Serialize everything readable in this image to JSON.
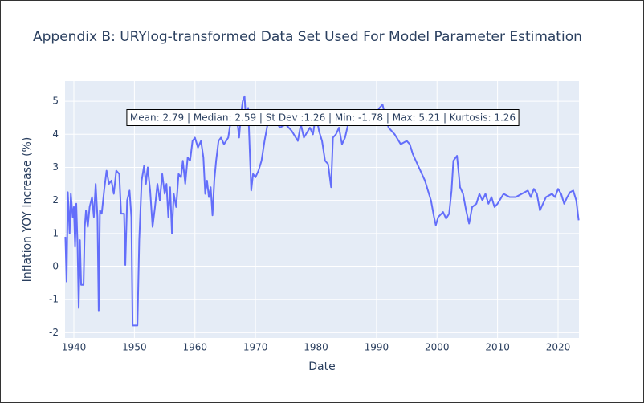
{
  "chart_data": {
    "type": "line",
    "title": "Appendix B: URYlog-transformed Data Set Used For Model Parameter Estimation",
    "x_label": "Date",
    "y_label": "Inflation YOY Increase (%)",
    "annotation": "Mean: 2.79 | Median: 2.59 | St Dev :1.26 | Min: -1.78 | Max: 5.21 | Kurtosis: 1.26",
    "xlim": [
      1938.54,
      2023.45
    ],
    "xticks": [
      1940,
      1950,
      1960,
      1970,
      1980,
      1990,
      2000,
      2010,
      2020
    ],
    "ylim": [
      -2.16,
      5.61
    ],
    "yticks": [
      -2,
      -1,
      0,
      1,
      2,
      3,
      4,
      5
    ],
    "grid": true,
    "series": [
      {
        "color": "#636efa",
        "x": [
          1938.6,
          1938.8,
          1939.0,
          1939.3,
          1939.5,
          1939.8,
          1940.0,
          1940.2,
          1940.4,
          1940.6,
          1940.8,
          1941.0,
          1941.2,
          1941.6,
          1941.8,
          1942.0,
          1942.3,
          1942.6,
          1943.0,
          1943.3,
          1943.6,
          1943.9,
          1944.1,
          1944.3,
          1944.6,
          1945.0,
          1945.4,
          1945.8,
          1946.2,
          1946.6,
          1947.0,
          1947.5,
          1947.8,
          1948.3,
          1948.5,
          1948.8,
          1949.2,
          1949.5,
          1949.7,
          1950.5,
          1950.8,
          1951.2,
          1951.6,
          1951.9,
          1952.2,
          1952.6,
          1953.0,
          1953.4,
          1953.8,
          1954.2,
          1954.6,
          1955.0,
          1955.3,
          1955.6,
          1955.9,
          1956.2,
          1956.5,
          1956.9,
          1957.3,
          1957.7,
          1958.0,
          1958.4,
          1958.8,
          1959.2,
          1959.6,
          1960.0,
          1960.5,
          1961.0,
          1961.4,
          1961.7,
          1962.0,
          1962.3,
          1962.6,
          1962.9,
          1963.2,
          1963.5,
          1963.9,
          1964.3,
          1964.8,
          1965.5,
          1966.0,
          1966.5,
          1967.0,
          1967.3,
          1967.6,
          1967.9,
          1968.2,
          1968.4,
          1968.8,
          1969.3,
          1969.6,
          1970.0,
          1970.5,
          1971.0,
          1971.5,
          1972.0,
          1973.0,
          1974.0,
          1975.0,
          1976.0,
          1977.0,
          1977.5,
          1978.0,
          1979.0,
          1979.5,
          1980.0,
          1980.5,
          1981.0,
          1981.5,
          1982.0,
          1982.5,
          1982.8,
          1983.3,
          1983.8,
          1984.3,
          1984.8,
          1985.3,
          1986.0,
          1987.0,
          1988.0,
          1989.0,
          1989.8,
          1990.5,
          1991.0,
          1991.5,
          1992.0,
          1993.0,
          1994.0,
          1995.0,
          1995.5,
          1996.0,
          1997.0,
          1998.0,
          1998.5,
          1999.0,
          1999.5,
          1999.8,
          2000.2,
          2001.0,
          2001.5,
          2002.0,
          2002.4,
          2002.7,
          2003.3,
          2003.8,
          2004.3,
          2004.8,
          2005.3,
          2005.8,
          2006.5,
          2007.0,
          2007.5,
          2008.0,
          2008.5,
          2009.0,
          2009.5,
          2010.0,
          2011.0,
          2012.0,
          2013.0,
          2014.0,
          2015.0,
          2015.5,
          2016.0,
          2016.5,
          2017.0,
          2017.5,
          2018.0,
          2019.0,
          2019.5,
          2020.0,
          2020.5,
          2021.0,
          2021.5,
          2022.0,
          2022.5,
          2023.0,
          2023.4
        ],
        "values": [
          0.9,
          -0.45,
          2.25,
          1.0,
          2.2,
          1.5,
          1.8,
          0.6,
          1.9,
          0.7,
          -1.25,
          0.8,
          -0.55,
          -0.55,
          1.2,
          1.7,
          1.2,
          1.8,
          2.1,
          1.5,
          2.5,
          1.5,
          -1.35,
          1.7,
          1.6,
          2.3,
          2.9,
          2.5,
          2.6,
          2.2,
          2.9,
          2.8,
          1.6,
          1.6,
          0.05,
          2.0,
          2.3,
          1.5,
          -1.78,
          -1.78,
          0.8,
          2.6,
          3.05,
          2.5,
          3.0,
          2.3,
          1.2,
          1.8,
          2.5,
          2.0,
          2.8,
          2.2,
          2.5,
          1.5,
          2.4,
          1.0,
          2.2,
          1.8,
          2.8,
          2.7,
          3.2,
          2.5,
          3.3,
          3.2,
          3.8,
          3.9,
          3.6,
          3.8,
          3.3,
          2.2,
          2.6,
          2.1,
          2.4,
          1.55,
          2.6,
          3.2,
          3.8,
          3.9,
          3.7,
          3.9,
          4.5,
          4.6,
          4.4,
          3.9,
          4.6,
          5.0,
          5.15,
          4.5,
          4.8,
          2.3,
          2.8,
          2.7,
          2.9,
          3.2,
          3.8,
          4.3,
          4.6,
          4.2,
          4.3,
          4.1,
          3.8,
          4.3,
          3.9,
          4.2,
          4.0,
          4.6,
          4.1,
          3.8,
          3.2,
          3.1,
          2.4,
          3.9,
          4.0,
          4.2,
          3.7,
          3.9,
          4.3,
          4.5,
          4.4,
          4.3,
          4.4,
          4.6,
          4.8,
          4.9,
          4.5,
          4.2,
          4.0,
          3.7,
          3.8,
          3.7,
          3.4,
          3.0,
          2.6,
          2.3,
          2.0,
          1.5,
          1.25,
          1.5,
          1.65,
          1.45,
          1.6,
          2.3,
          3.2,
          3.35,
          2.4,
          2.2,
          1.7,
          1.3,
          1.8,
          1.9,
          2.2,
          2.0,
          2.2,
          1.9,
          2.1,
          1.8,
          1.9,
          2.2,
          2.1,
          2.1,
          2.2,
          2.3,
          2.1,
          2.35,
          2.2,
          1.7,
          1.9,
          2.1,
          2.2,
          2.1,
          2.35,
          2.2,
          1.9,
          2.1,
          2.25,
          2.3,
          2.0,
          1.4
        ]
      }
    ]
  }
}
